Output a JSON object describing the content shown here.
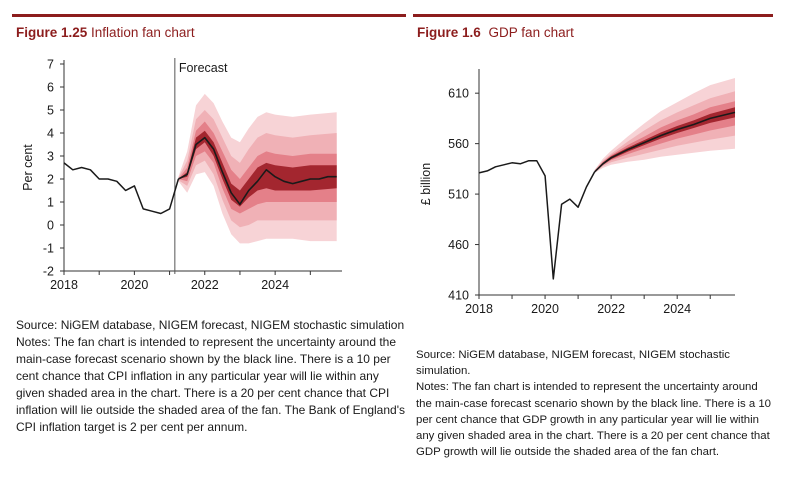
{
  "colors": {
    "accent": "#8c1d1d",
    "fan_bands": [
      "#f7d3d6",
      "#f0b1b6",
      "#e48089",
      "#a3262f"
    ],
    "line": "#1a1a1a"
  },
  "left": {
    "fig_num": "Figure 1.25",
    "fig_name": "Inflation fan chart",
    "source": "Source: NiGEM database, NIGEM forecast, NIGEM stochastic simulation",
    "notes": "Notes: The fan chart is intended to represent the uncertainty around the main-case forecast scenario shown by the black line. There is a 10 per cent chance that CPI inflation in any particular year will lie within any given shaded area in the chart. There is a 20 per cent chance that CPI inflation will lie outside the shaded area of the fan. The Bank of England's CPI inflation target is 2 per cent per annum."
  },
  "right": {
    "fig_num": "Figure 1.6",
    "fig_name": "GDP fan chart",
    "source": "Source: NiGEM database, NIGEM forecast, NIGEM stochastic simulation.",
    "notes": "Notes: The fan chart is intended to represent the uncertainty around the main-case forecast scenario shown by the black line. There is a 10 per cent chance that GDP growth in any particular year will lie within any given shaded area in the chart. There is a 20 per cent chance that GDP growth will lie outside the shaded area of the fan chart."
  },
  "chart_data": [
    {
      "type": "line",
      "title": "Inflation fan chart",
      "ylabel": "Per cent",
      "xlim": [
        2018,
        2025.9
      ],
      "ylim": [
        -2,
        7
      ],
      "xticks": [
        2018,
        2020,
        2022,
        2024
      ],
      "yticks": [
        -2,
        -1,
        0,
        1,
        2,
        3,
        4,
        5,
        6,
        7
      ],
      "annotation": {
        "text": "Forecast",
        "x": 2021.15
      },
      "series": [
        {
          "x": [
            2018.0,
            2018.25,
            2018.5,
            2018.75,
            2019.0,
            2019.25,
            2019.5,
            2019.75,
            2020.0,
            2020.25,
            2020.5,
            2020.75,
            2021.0,
            2021.25
          ],
          "y": [
            2.7,
            2.4,
            2.5,
            2.4,
            2.0,
            2.0,
            1.9,
            1.5,
            1.7,
            0.7,
            0.6,
            0.5,
            0.7,
            2.0
          ]
        }
      ],
      "forecast_central": {
        "x": [
          2021.25,
          2021.5,
          2021.75,
          2022.0,
          2022.25,
          2022.5,
          2022.75,
          2023.0,
          2023.25,
          2023.5,
          2023.75,
          2024.0,
          2024.25,
          2024.5,
          2024.75,
          2025.0,
          2025.25,
          2025.5,
          2025.75
        ],
        "y": [
          2.0,
          2.2,
          3.5,
          3.8,
          3.3,
          2.3,
          1.4,
          0.9,
          1.5,
          1.9,
          2.4,
          2.1,
          1.9,
          1.8,
          1.9,
          2.0,
          2.0,
          2.1,
          2.1
        ]
      },
      "fan": {
        "x": [
          2021.25,
          2021.5,
          2021.75,
          2022.0,
          2022.25,
          2022.5,
          2022.75,
          2023.0,
          2023.25,
          2023.5,
          2023.75,
          2024.0,
          2024.5,
          2025.0,
          2025.75
        ],
        "bands": [
          {
            "lower": [
              1.9,
              1.4,
              2.2,
              2.3,
              1.7,
              0.5,
              -0.4,
              -0.8,
              -0.8,
              -0.7,
              -0.6,
              -0.6,
              -0.6,
              -0.7,
              -0.7
            ],
            "upper": [
              2.1,
              3.2,
              5.2,
              5.7,
              5.3,
              4.5,
              3.8,
              3.6,
              4.2,
              4.7,
              4.9,
              4.8,
              4.7,
              4.8,
              4.9
            ]
          },
          {
            "lower": [
              1.95,
              1.7,
              2.6,
              2.8,
              2.2,
              1.1,
              0.2,
              -0.1,
              0.0,
              0.2,
              0.2,
              0.2,
              0.2,
              0.2,
              0.2
            ],
            "upper": [
              2.05,
              2.8,
              4.6,
              5.0,
              4.6,
              3.8,
              3.0,
              2.7,
              3.3,
              3.8,
              4.0,
              3.9,
              3.8,
              3.9,
              4.0
            ]
          },
          {
            "lower": [
              2.0,
              1.9,
              3.0,
              3.2,
              2.7,
              1.6,
              0.7,
              0.5,
              0.7,
              0.9,
              1.0,
              1.0,
              1.0,
              1.0,
              1.0
            ],
            "upper": [
              2.0,
              2.5,
              4.1,
              4.5,
              4.0,
              3.2,
              2.4,
              2.0,
              2.5,
              3.0,
              3.2,
              3.1,
              3.0,
              3.1,
              3.1
            ]
          },
          {
            "lower": [
              2.0,
              2.1,
              3.3,
              3.6,
              3.0,
              2.0,
              1.1,
              0.8,
              1.2,
              1.5,
              1.6,
              1.5,
              1.5,
              1.5,
              1.6
            ],
            "upper": [
              2.0,
              2.3,
              3.8,
              4.1,
              3.6,
              2.7,
              1.8,
              1.5,
              2.0,
              2.5,
              2.7,
              2.6,
              2.5,
              2.6,
              2.6
            ]
          }
        ]
      }
    },
    {
      "type": "line",
      "title": "GDP fan chart",
      "ylabel": "£ billion",
      "xlim": [
        2018,
        2025.75
      ],
      "ylim": [
        410,
        630
      ],
      "xticks": [
        2018,
        2020,
        2022,
        2024
      ],
      "yticks": [
        410,
        460,
        510,
        560,
        610
      ],
      "series": [
        {
          "x": [
            2018.0,
            2018.25,
            2018.5,
            2018.75,
            2019.0,
            2019.25,
            2019.5,
            2019.75,
            2020.0,
            2020.25,
            2020.5,
            2020.75,
            2021.0,
            2021.25,
            2021.5
          ],
          "y": [
            531,
            533,
            537,
            539,
            541,
            540,
            543,
            543,
            528,
            426,
            500,
            505,
            497,
            517,
            532
          ]
        }
      ],
      "forecast_central": {
        "x": [
          2021.5,
          2021.75,
          2022.0,
          2022.5,
          2023.0,
          2023.5,
          2024.0,
          2024.5,
          2025.0,
          2025.75
        ],
        "y": [
          532,
          540,
          546,
          554,
          561,
          568,
          574,
          579,
          585,
          591
        ]
      },
      "fan": {
        "x": [
          2021.5,
          2021.75,
          2022.0,
          2022.5,
          2023.0,
          2023.5,
          2024.0,
          2024.5,
          2025.0,
          2025.75
        ],
        "bands": [
          {
            "lower": [
              531,
              536,
              539,
              542,
              544,
              547,
              549,
              551,
              553,
              555
            ],
            "upper": [
              534,
              545,
              553,
              567,
              580,
              592,
              601,
              610,
              618,
              625
            ]
          },
          {
            "lower": [
              531.5,
              537.5,
              541.5,
              546,
              550,
              554,
              558,
              561,
              564,
              568
            ],
            "upper": [
              533.5,
              543,
              550,
              562,
              573,
              583,
              591,
              598,
              605,
              612
            ]
          },
          {
            "lower": [
              532,
              538.5,
              543.5,
              549.5,
              555,
              560,
              565,
              569,
              573,
              578
            ],
            "upper": [
              533,
              542,
              548.5,
              558.5,
              567,
              576,
              583,
              589,
              596,
              602
            ]
          },
          {
            "lower": [
              532,
              539,
              544.5,
              552,
              558.5,
              565,
              570.5,
              575.5,
              580.5,
              586
            ],
            "upper": [
              532.5,
              541,
              547.5,
              556,
              563.5,
              571,
              577.5,
              583,
              589.5,
              596
            ]
          }
        ]
      }
    }
  ]
}
